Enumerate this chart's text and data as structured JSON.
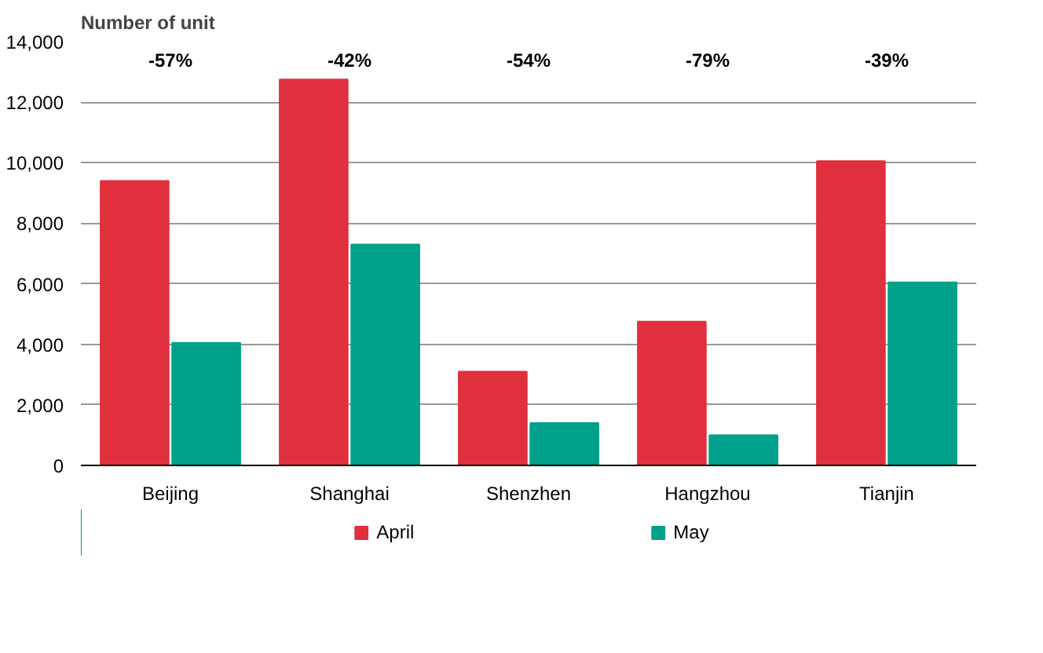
{
  "chart_data": {
    "type": "bar",
    "title": "Number of unit",
    "categories": [
      "Beijing",
      "Shanghai",
      "Shenzhen",
      "Hangzhou",
      "Tianjin"
    ],
    "series": [
      {
        "name": "April",
        "color": "#e0303d",
        "values": [
          9400,
          12750,
          3100,
          4750,
          10050
        ]
      },
      {
        "name": "May",
        "color": "#00a08a",
        "values": [
          4050,
          7300,
          1400,
          1000,
          6050
        ]
      }
    ],
    "ylim": [
      0,
      14000
    ],
    "yticks": [
      0,
      {
        "value": 2000,
        "label": "2,000"
      },
      {
        "value": 4000,
        "label": "4,000"
      },
      {
        "value": 6000,
        "label": "6,000"
      },
      {
        "value": 8000,
        "label": "8,000"
      },
      {
        "value": 10000,
        "label": "10,000"
      },
      {
        "value": 12000,
        "label": "12,000"
      },
      {
        "value": 14000,
        "label": "14,000"
      }
    ],
    "grid": "y",
    "legend": "bottom",
    "annotations": [
      "-57%",
      "-42%",
      "-54%",
      "-79%",
      "-39%"
    ]
  }
}
